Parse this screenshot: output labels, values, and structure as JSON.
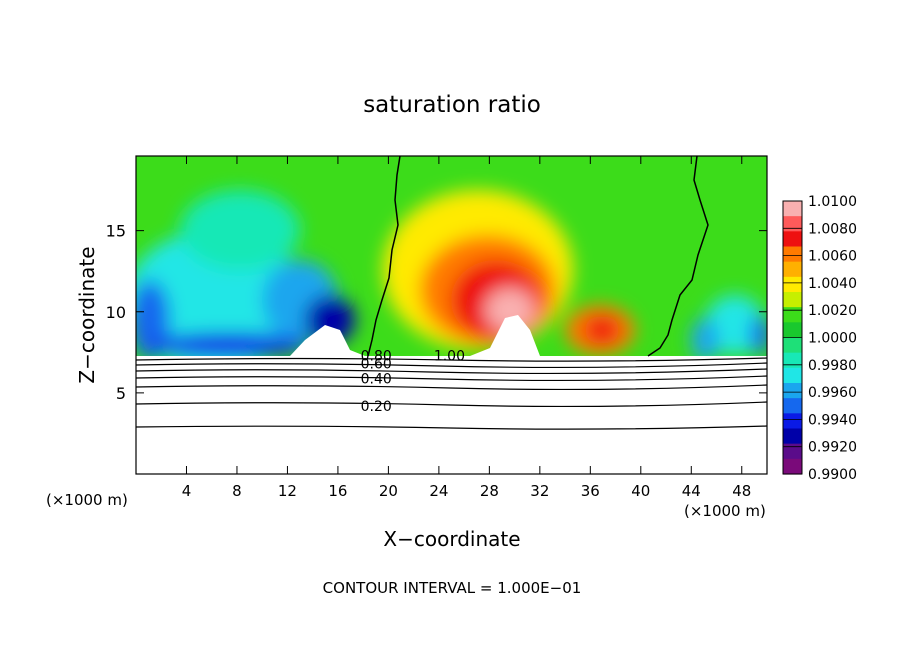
{
  "chart_data": {
    "type": "heatmap",
    "title": "saturation ratio",
    "xlabel": "X−coordinate",
    "ylabel": "Z−coordinate",
    "x_unit_left": "(×1000 m)",
    "x_unit_right": "(×1000 m)",
    "xlim": [
      0,
      50
    ],
    "ylim": [
      0,
      19.6
    ],
    "x_ticks": [
      4,
      8,
      12,
      16,
      20,
      24,
      28,
      32,
      36,
      40,
      44,
      48
    ],
    "y_ticks": [
      5,
      10,
      15
    ],
    "footer": "CONTOUR INTERVAL = 1.000E−01",
    "colorbar": {
      "labels": [
        "1.0100",
        "1.0080",
        "1.0060",
        "1.0040",
        "1.0020",
        "1.0000",
        "0.9980",
        "0.9960",
        "0.9940",
        "0.9920",
        "0.9900"
      ],
      "colors": [
        "#f9b0b0",
        "#ff5a5a",
        "#ee1010",
        "#ff7a00",
        "#ffb000",
        "#ffea00",
        "#c6ef00",
        "#3cdc1a",
        "#19c82e",
        "#1ee078",
        "#18e8b6",
        "#20e6e6",
        "#1aa6ee",
        "#1568ee",
        "#0a1ae6",
        "#0000a8",
        "#5a0c8a",
        "#7a0a7a"
      ]
    },
    "contour_labels": [
      {
        "text": "0.80",
        "x": 17.8,
        "y": 7.3
      },
      {
        "text": "0.60",
        "x": 17.8,
        "y": 6.8
      },
      {
        "text": "0.40",
        "x": 17.8,
        "y": 5.9
      },
      {
        "text": "0.20",
        "x": 17.8,
        "y": 4.2
      },
      {
        "text": "1.00",
        "x": 23.6,
        "y": 7.3
      }
    ],
    "terrain_top": [
      [
        0,
        7.4
      ],
      [
        2,
        7.3
      ],
      [
        4,
        7.2
      ],
      [
        6,
        7.3
      ],
      [
        8,
        7.3
      ],
      [
        10,
        7.4
      ],
      [
        12,
        7.6
      ],
      [
        14,
        8.4
      ],
      [
        15.5,
        8.8
      ],
      [
        16.5,
        8.3
      ],
      [
        17.2,
        7.6
      ],
      [
        18,
        7.3
      ],
      [
        22,
        7.3
      ],
      [
        25,
        7.4
      ],
      [
        27,
        8.0
      ],
      [
        29,
        8.8
      ],
      [
        30.5,
        8.8
      ],
      [
        31.5,
        7.6
      ],
      [
        32.5,
        7.3
      ],
      [
        50,
        7.2
      ]
    ]
  }
}
